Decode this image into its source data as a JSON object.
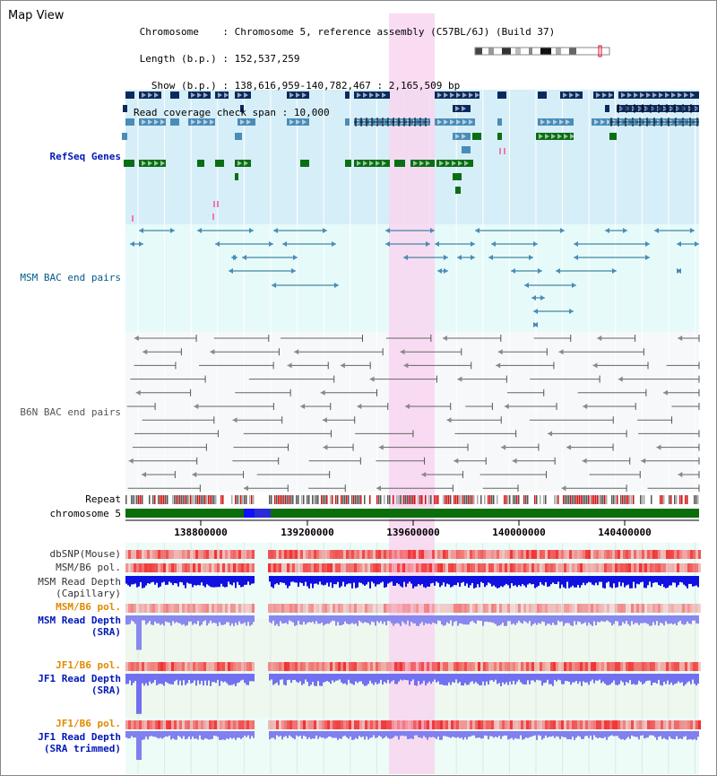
{
  "title": "Map View",
  "info": {
    "chromosome_key": "Chromosome",
    "chromosome_value": "Chromosome 5, reference assembly (C57BL/6J) (Build 37)",
    "length_key": "Length (b.p.)",
    "length_value": "152,537,259",
    "show_key": "Show (b.p.)",
    "show_value": "138,616,959-140,782,467 : 2,165,509 bp",
    "coverage_key": "Read coverage check span",
    "coverage_value": "10,000"
  },
  "tracks": {
    "refseq": "RefSeq Genes",
    "msm_bac": "MSM BAC end pairs",
    "b6n_bac": "B6N BAC end pairs",
    "repeat": "Repeat",
    "chromosome": "chromosome 5",
    "dbsnp": "dbSNP(Mouse)",
    "msm_b6_pol": "MSM/B6 pol.",
    "msm_depth_cap_1": "MSM Read Depth",
    "msm_depth_cap_2": "(Capillary)",
    "msm_b6_pol_2": "MSM/B6 pol.",
    "msm_depth_sra_1": "MSM Read Depth",
    "msm_depth_sra_2": "(SRA)",
    "jf1_b6_pol": "JF1/B6 pol.",
    "jf1_depth_sra_1": "JF1 Read Depth",
    "jf1_depth_sra_2": "(SRA)",
    "jf1_b6_pol_2": "JF1/B6 pol.",
    "jf1_depth_trim_1": "JF1 Read Depth",
    "jf1_depth_trim_2": "(SRA trimmed)"
  },
  "axis": {
    "ticks": [
      "138800000",
      "139200000",
      "139600000",
      "140000000",
      "140400000"
    ]
  },
  "colors": {
    "refseq_bg": "#d6eef8",
    "bac_bg": "#e6fafa",
    "highlight": "#f8d6f0",
    "gene_navy": "#0a2a5e",
    "gene_steel": "#4a8cb8",
    "gene_green": "#0a6e14",
    "bac_line": "#1a6b8c",
    "b6n_line": "#666666",
    "chrom_green": "#0a6e0a",
    "depth_blue": "#1010e0",
    "pol_red": "#f03030"
  }
}
